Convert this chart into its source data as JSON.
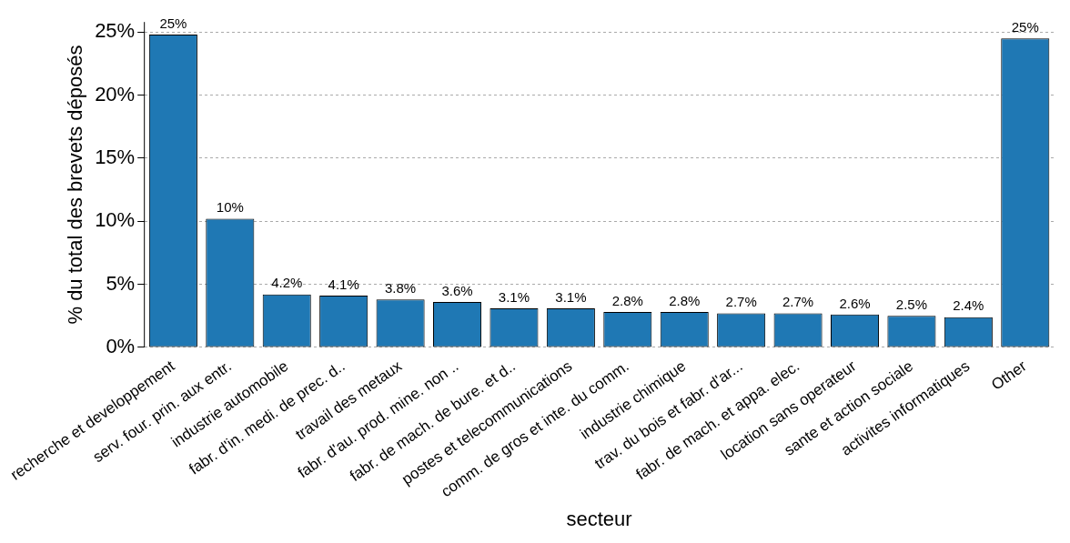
{
  "chart_data": {
    "type": "bar",
    "xlabel": "secteur",
    "ylabel": "% du total des brevets déposés",
    "categories": [
      "recherche et developpement",
      "serv. four. prin. aux entr.",
      "industrie automobile",
      "fabr. d'in. medi. de prec. d..",
      "travail des metaux",
      "fabr. d'au. prod. mine. non ..",
      "fabr. de mach. de bure. et d..",
      "postes et telecommunications",
      "comm. de gros et inte. du comm.",
      "industrie chimique",
      "trav. du bois et fabr. d'ar...",
      "fabr. de mach. et appa. elec.",
      "location sans operateur",
      "sante et action sociale",
      "activites informatiques",
      "Other"
    ],
    "values": [
      24.8,
      10.2,
      4.2,
      4.1,
      3.8,
      3.6,
      3.1,
      3.1,
      2.8,
      2.8,
      2.7,
      2.7,
      2.6,
      2.5,
      2.4,
      24.5
    ],
    "value_labels": [
      "25%",
      "10%",
      "4.2%",
      "4.1%",
      "3.8%",
      "3.6%",
      "3.1%",
      "3.1%",
      "2.8%",
      "2.8%",
      "2.7%",
      "2.7%",
      "2.6%",
      "2.5%",
      "2.4%",
      "25%"
    ],
    "color": "#1f78b4",
    "ylim": [
      0,
      25.8
    ],
    "yticks": [
      {
        "value": 0,
        "label": "0%"
      },
      {
        "value": 5,
        "label": "5%"
      },
      {
        "value": 10,
        "label": "10%"
      },
      {
        "value": 15,
        "label": "15%"
      },
      {
        "value": 20,
        "label": "20%"
      },
      {
        "value": 25,
        "label": "25%"
      }
    ],
    "grid": "y",
    "legend": false
  }
}
